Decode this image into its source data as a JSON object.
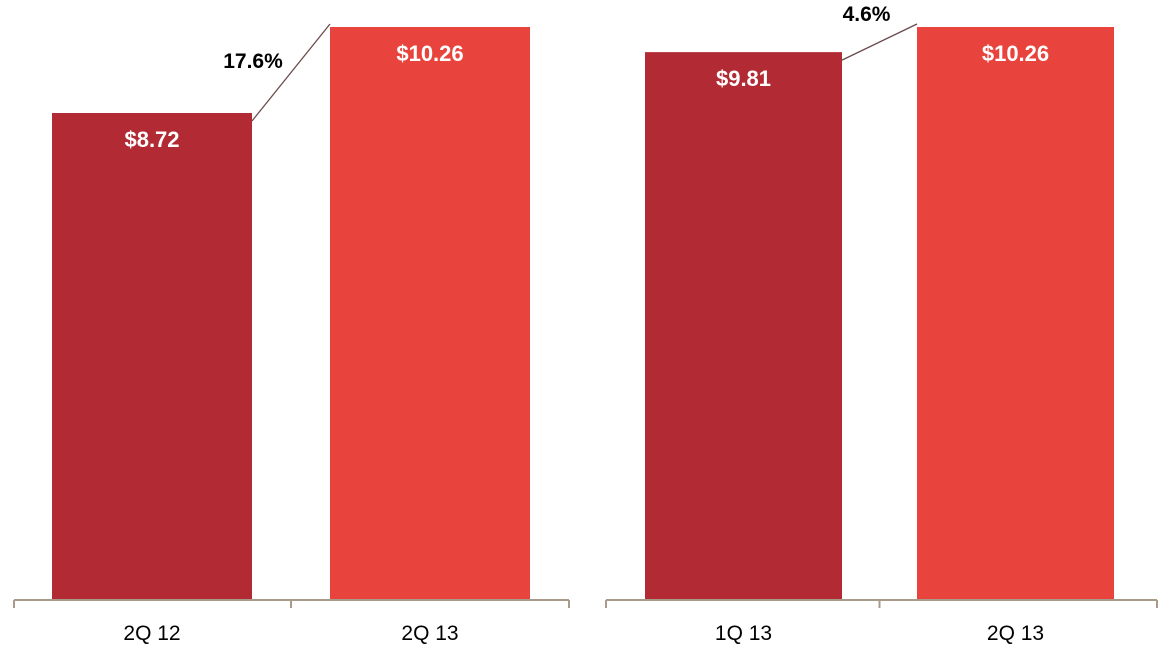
{
  "chart_data": [
    {
      "type": "bar",
      "categories": [
        "2Q 12",
        "2Q 13"
      ],
      "values": [
        8.72,
        10.26
      ],
      "value_labels": [
        "$8.72",
        "$10.26"
      ],
      "change_label": "17.6%",
      "ylim": [
        0,
        10.26
      ],
      "colors": [
        "#b22a33",
        "#e8443d"
      ],
      "grid": false
    },
    {
      "type": "bar",
      "categories": [
        "1Q 13",
        "2Q 13"
      ],
      "values": [
        9.81,
        10.26
      ],
      "value_labels": [
        "$9.81",
        "$10.26"
      ],
      "change_label": "4.6%",
      "ylim": [
        0,
        10.26
      ],
      "colors": [
        "#b22a33",
        "#e8443d"
      ],
      "grid": false
    }
  ],
  "colors": {
    "axis": "#a89b8a",
    "connector": "#6b4a4a"
  }
}
